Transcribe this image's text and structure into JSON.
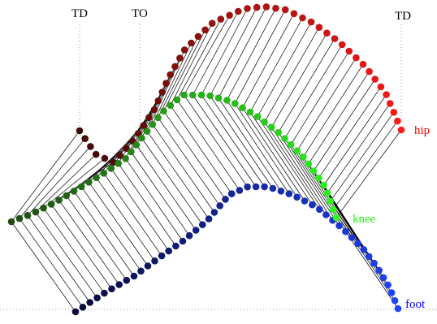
{
  "event_labels": {
    "td_start": "TD",
    "to": "TO",
    "td_end": "TD"
  },
  "series_labels": {
    "hip": "hip",
    "knee": "knee",
    "foot": "foot"
  },
  "colors": {
    "hip_start": "#3a0a08",
    "hip_end": "#ff1a1a",
    "knee_start": "#1f4a12",
    "knee_end": "#2cff1f",
    "foot_start": "#0b0a3a",
    "foot_end": "#1f45ff",
    "hip_text": "#ff0000",
    "knee_text": "#22ee11",
    "foot_text": "#0000ff",
    "segment": "#000000",
    "guides": "#999999"
  },
  "frame_count": 50
}
